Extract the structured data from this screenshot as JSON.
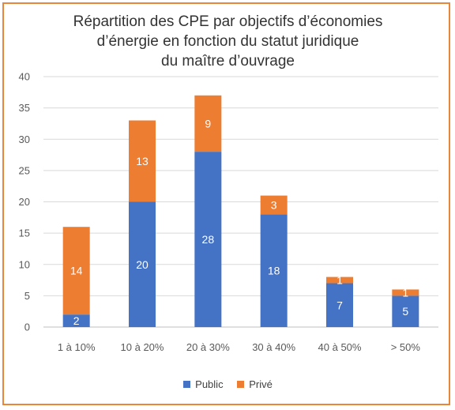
{
  "chart_data": {
    "type": "bar",
    "stacked": true,
    "title_lines": [
      "Répartition des CPE par objectifs d’économies",
      "d’énergie en fonction du statut juridique",
      "du maître d’ouvrage"
    ],
    "categories": [
      "1 à 10%",
      "10 à 20%",
      "20 à 30%",
      "30 à 40%",
      "40 à 50%",
      "> 50%"
    ],
    "series": [
      {
        "name": "Public",
        "values": [
          2,
          20,
          28,
          18,
          7,
          5
        ],
        "color": "#4472c4"
      },
      {
        "name": "Privé",
        "values": [
          14,
          13,
          9,
          3,
          1,
          1
        ],
        "color": "#ed7d31"
      }
    ],
    "ylim": [
      0,
      40
    ],
    "yticks": [
      "0",
      "5",
      "10",
      "15",
      "20",
      "25",
      "30",
      "35",
      "40"
    ],
    "grid": true,
    "legend_position": "bottom",
    "frame_color": "#e8873a"
  }
}
